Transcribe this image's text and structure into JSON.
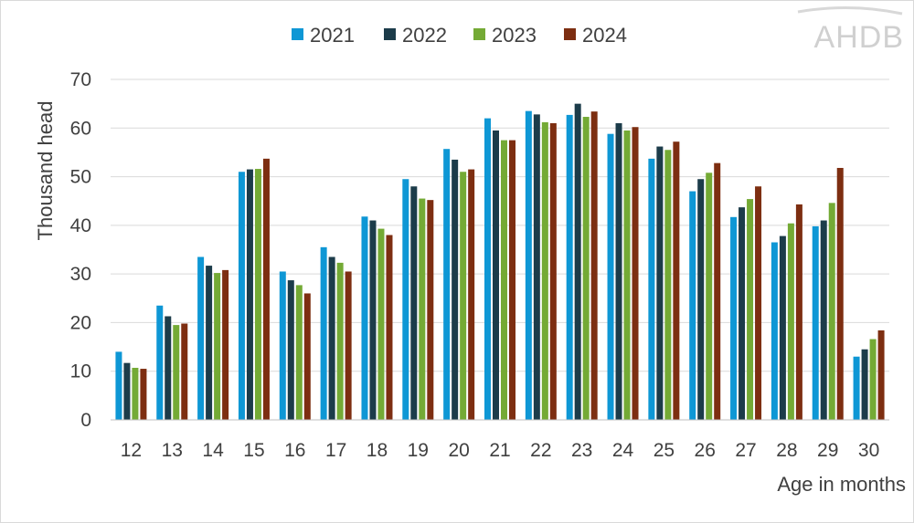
{
  "logo": {
    "text": "AHDB"
  },
  "colors": {
    "grid": "#d9d9d9",
    "axis": "#bfbfbf",
    "text": "#404040",
    "logo": "#d0d0d0"
  },
  "chart_data": {
    "type": "bar",
    "title": "",
    "xlabel": "Age in months",
    "ylabel": "Thousand head",
    "ylim": [
      0,
      70
    ],
    "yticks": [
      0,
      10,
      20,
      30,
      40,
      50,
      60,
      70
    ],
    "grid": true,
    "legend_position": "top-center",
    "categories": [
      "12",
      "13",
      "14",
      "15",
      "16",
      "17",
      "18",
      "19",
      "20",
      "21",
      "22",
      "23",
      "24",
      "25",
      "26",
      "27",
      "28",
      "29",
      "30"
    ],
    "series": [
      {
        "name": "2021",
        "color": "#0e97d5",
        "values": [
          14.0,
          23.5,
          33.5,
          51.0,
          30.5,
          35.5,
          41.8,
          49.5,
          55.7,
          62.0,
          63.5,
          62.7,
          58.8,
          53.7,
          47.0,
          41.7,
          36.5,
          39.8,
          13.0
        ]
      },
      {
        "name": "2022",
        "color": "#1c3c4a",
        "values": [
          11.7,
          21.3,
          31.7,
          51.5,
          28.7,
          33.5,
          41.0,
          48.0,
          53.5,
          59.5,
          62.8,
          65.0,
          61.0,
          56.2,
          49.5,
          43.7,
          37.8,
          41.0,
          14.5
        ]
      },
      {
        "name": "2023",
        "color": "#74aa35",
        "values": [
          10.7,
          19.5,
          30.2,
          51.6,
          27.7,
          32.3,
          39.3,
          45.5,
          51.0,
          57.5,
          61.2,
          62.3,
          59.5,
          55.5,
          50.8,
          45.4,
          40.4,
          44.6,
          16.6
        ]
      },
      {
        "name": "2024",
        "color": "#7d2e11",
        "values": [
          10.5,
          19.8,
          30.8,
          53.7,
          26.0,
          30.5,
          38.0,
          45.2,
          51.5,
          57.5,
          61.0,
          63.4,
          60.2,
          57.2,
          52.8,
          48.0,
          44.3,
          51.8,
          18.4
        ]
      }
    ]
  }
}
